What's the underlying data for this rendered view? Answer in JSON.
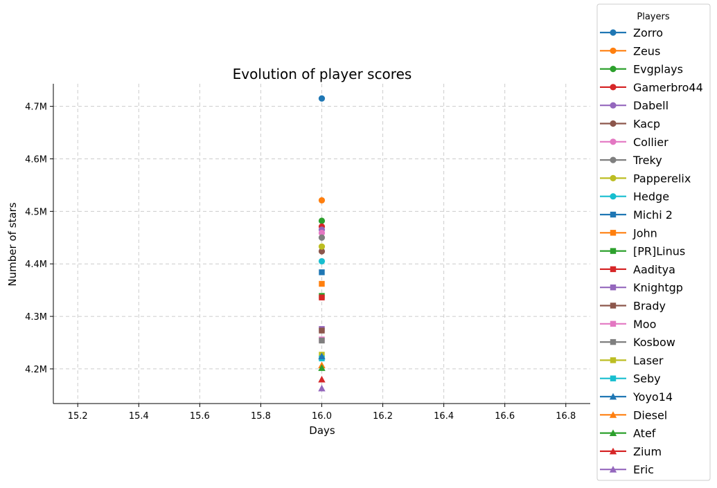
{
  "chart_data": {
    "type": "scatter",
    "title": "Evolution of player scores",
    "xlabel": "Days",
    "ylabel": "Number of stars",
    "xlim": [
      15.12,
      16.88
    ],
    "ylim": [
      4134000,
      4743000
    ],
    "xticks": [
      15.2,
      15.4,
      15.6,
      15.8,
      16.0,
      16.2,
      16.4,
      16.6,
      16.8
    ],
    "xtick_labels": [
      "15.2",
      "15.4",
      "15.6",
      "15.8",
      "16.0",
      "16.2",
      "16.4",
      "16.6",
      "16.8"
    ],
    "yticks": [
      4200000,
      4300000,
      4400000,
      4500000,
      4600000,
      4700000
    ],
    "ytick_labels": [
      "4.2M",
      "4.3M",
      "4.4M",
      "4.5M",
      "4.6M",
      "4.7M"
    ],
    "grid": true,
    "legend_title": "Players",
    "legend_placement": "outside right",
    "series": [
      {
        "name": "Zorro",
        "color": "#1f77b4",
        "marker": "circle",
        "x": [
          16.0
        ],
        "y": [
          4715000
        ]
      },
      {
        "name": "Zeus",
        "color": "#ff7f0e",
        "marker": "circle",
        "x": [
          16.0
        ],
        "y": [
          4521000
        ]
      },
      {
        "name": "Evgplays",
        "color": "#2ca02c",
        "marker": "circle",
        "x": [
          16.0
        ],
        "y": [
          4482000
        ]
      },
      {
        "name": "Gamerbro44",
        "color": "#d62728",
        "marker": "circle",
        "x": [
          16.0
        ],
        "y": [
          4471000
        ]
      },
      {
        "name": "Dabell",
        "color": "#9467bd",
        "marker": "circle",
        "x": [
          16.0
        ],
        "y": [
          4465000
        ]
      },
      {
        "name": "Kacp",
        "color": "#8c564b",
        "marker": "circle",
        "x": [
          16.0
        ],
        "y": [
          4424000
        ]
      },
      {
        "name": "Collier",
        "color": "#e377c2",
        "marker": "circle",
        "x": [
          16.0
        ],
        "y": [
          4459000
        ]
      },
      {
        "name": "Treky",
        "color": "#7f7f7f",
        "marker": "circle",
        "x": [
          16.0
        ],
        "y": [
          4450000
        ]
      },
      {
        "name": "Papperelix",
        "color": "#bcbd22",
        "marker": "circle",
        "x": [
          16.0
        ],
        "y": [
          4433000
        ]
      },
      {
        "name": "Hedge",
        "color": "#17becf",
        "marker": "circle",
        "x": [
          16.0
        ],
        "y": [
          4405000
        ]
      },
      {
        "name": "Michi 2",
        "color": "#1f77b4",
        "marker": "square",
        "x": [
          16.0
        ],
        "y": [
          4384000
        ]
      },
      {
        "name": "John",
        "color": "#ff7f0e",
        "marker": "square",
        "x": [
          16.0
        ],
        "y": [
          4362000
        ]
      },
      {
        "name": "[PR]Linus",
        "color": "#2ca02c",
        "marker": "square",
        "x": [
          16.0
        ],
        "y": [
          4339000
        ]
      },
      {
        "name": "Aaditya",
        "color": "#d62728",
        "marker": "square",
        "x": [
          16.0
        ],
        "y": [
          4336000
        ]
      },
      {
        "name": "Knightgp",
        "color": "#9467bd",
        "marker": "square",
        "x": [
          16.0
        ],
        "y": [
          4276000
        ]
      },
      {
        "name": "Brady",
        "color": "#8c564b",
        "marker": "square",
        "x": [
          16.0
        ],
        "y": [
          4273000
        ]
      },
      {
        "name": "Moo",
        "color": "#e377c2",
        "marker": "square",
        "x": [
          16.0
        ],
        "y": [
          4256000
        ]
      },
      {
        "name": "Kosbow",
        "color": "#7f7f7f",
        "marker": "square",
        "x": [
          16.0
        ],
        "y": [
          4254000
        ]
      },
      {
        "name": "Laser",
        "color": "#bcbd22",
        "marker": "square",
        "x": [
          16.0
        ],
        "y": [
          4227000
        ]
      },
      {
        "name": "Seby",
        "color": "#17becf",
        "marker": "square",
        "x": [
          16.0
        ],
        "y": [
          4220000
        ]
      },
      {
        "name": "Yoyo14",
        "color": "#1f77b4",
        "marker": "triangle",
        "x": [
          16.0
        ],
        "y": [
          4224000
        ]
      },
      {
        "name": "Diesel",
        "color": "#ff7f0e",
        "marker": "triangle",
        "x": [
          16.0
        ],
        "y": [
          4207000
        ]
      },
      {
        "name": "Atef",
        "color": "#2ca02c",
        "marker": "triangle",
        "x": [
          16.0
        ],
        "y": [
          4202000
        ]
      },
      {
        "name": "Zium",
        "color": "#d62728",
        "marker": "triangle",
        "x": [
          16.0
        ],
        "y": [
          4180000
        ]
      },
      {
        "name": "Eric",
        "color": "#9467bd",
        "marker": "triangle",
        "x": [
          16.0
        ],
        "y": [
          4163000
        ]
      }
    ]
  }
}
